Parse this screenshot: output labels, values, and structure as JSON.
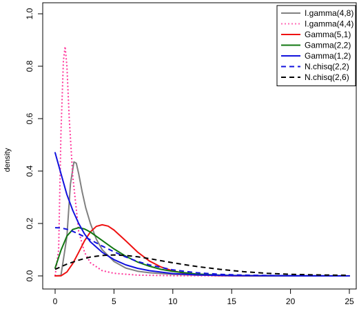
{
  "chart_data": {
    "type": "line",
    "title": "",
    "xlabel": "",
    "ylabel": "density",
    "xlim": [
      0,
      25
    ],
    "ylim": [
      0,
      1.0
    ],
    "x_ticks": [
      0,
      5,
      10,
      15,
      20,
      25
    ],
    "y_ticks": [
      0.0,
      0.2,
      0.4,
      0.6,
      0.8,
      1.0
    ],
    "x_tick_labels": [
      "0",
      "5",
      "10",
      "15",
      "20",
      "25"
    ],
    "y_tick_labels": [
      "0.0",
      "0.2",
      "0.4",
      "0.6",
      "0.8",
      "1.0"
    ],
    "grid": false,
    "legend_position": "top-right",
    "series": [
      {
        "name": "I.gamma(4,8)",
        "color": "#808080",
        "dash": "solid",
        "x": [
          0,
          0.5,
          1.0,
          1.3,
          1.6,
          1.8,
          2.0,
          2.3,
          2.6,
          3.0,
          3.5,
          4.0,
          5.0,
          6.0,
          7.0,
          8.0,
          10.0,
          12.0,
          15.0,
          20.0,
          25.0
        ],
        "y": [
          0,
          0.002,
          0.15,
          0.35,
          0.435,
          0.43,
          0.39,
          0.32,
          0.26,
          0.2,
          0.14,
          0.1,
          0.055,
          0.03,
          0.018,
          0.012,
          0.006,
          0.003,
          0.001,
          0.0004,
          0.0001
        ]
      },
      {
        "name": "I.gamma(4,4)",
        "color": "#ff3399",
        "dash": "dotted",
        "x": [
          0,
          0.3,
          0.5,
          0.7,
          0.85,
          1.0,
          1.2,
          1.5,
          2.0,
          2.5,
          3.0,
          4.0,
          5.0,
          7.0,
          10.0,
          15.0,
          25.0
        ],
        "y": [
          0,
          0.1,
          0.55,
          0.82,
          0.875,
          0.8,
          0.6,
          0.38,
          0.17,
          0.09,
          0.05,
          0.02,
          0.01,
          0.003,
          0.0008,
          0.0002,
          0.0
        ],
        "legend_color": "#ff69b4"
      },
      {
        "name": "Gamma(5,1)",
        "color": "#ee1111",
        "dash": "solid",
        "x": [
          0,
          0.5,
          1.0,
          1.5,
          2.0,
          2.5,
          3.0,
          3.5,
          4.0,
          4.5,
          5.0,
          6.0,
          7.0,
          8.0,
          9.0,
          10.0,
          11.0,
          12.0,
          14.0,
          16.0,
          20.0,
          25.0
        ],
        "y": [
          0,
          0.0002,
          0.015,
          0.047,
          0.09,
          0.134,
          0.168,
          0.189,
          0.195,
          0.19,
          0.175,
          0.134,
          0.091,
          0.057,
          0.034,
          0.019,
          0.01,
          0.005,
          0.001,
          0.0003,
          0.0,
          0.0
        ]
      },
      {
        "name": "Gamma(2,2)",
        "color": "#117711",
        "dash": "solid",
        "x": [
          0,
          0.5,
          1.0,
          1.5,
          2.0,
          2.5,
          3.0,
          4.0,
          5.0,
          6.0,
          7.0,
          8.0,
          9.0,
          10.0,
          12.0,
          14.0,
          16.0,
          20.0,
          25.0
        ],
        "y": [
          0.03,
          0.098,
          0.152,
          0.177,
          0.184,
          0.179,
          0.167,
          0.135,
          0.103,
          0.075,
          0.053,
          0.037,
          0.025,
          0.017,
          0.007,
          0.003,
          0.001,
          0.0002,
          0.0
        ]
      },
      {
        "name": "Gamma(1,2)",
        "color": "#1111dd",
        "dash": "solid",
        "x": [
          0,
          0.5,
          1.0,
          1.5,
          2.0,
          2.5,
          3.0,
          4.0,
          5.0,
          6.0,
          7.0,
          8.0,
          10.0,
          12.0,
          15.0,
          20.0,
          25.0
        ],
        "y": [
          0.47,
          0.39,
          0.31,
          0.25,
          0.2,
          0.16,
          0.13,
          0.09,
          0.062,
          0.042,
          0.029,
          0.02,
          0.009,
          0.004,
          0.001,
          0.0002,
          0.0
        ]
      },
      {
        "name": "N.chisq(2,2)",
        "color": "#1111dd",
        "dash": "dashed",
        "x": [
          0,
          0.5,
          1.0,
          1.5,
          2.0,
          3.0,
          4.0,
          5.0,
          6.0,
          7.0,
          8.0,
          10.0,
          12.0,
          14.0,
          16.0,
          20.0,
          25.0
        ],
        "y": [
          0.184,
          0.183,
          0.178,
          0.17,
          0.16,
          0.138,
          0.114,
          0.092,
          0.072,
          0.055,
          0.042,
          0.023,
          0.012,
          0.006,
          0.003,
          0.0006,
          0.0
        ]
      },
      {
        "name": "N.chisq(2,6)",
        "color": "#000000",
        "dash": "dashed",
        "x": [
          0,
          1.0,
          2.0,
          3.0,
          4.0,
          5.0,
          6.0,
          7.0,
          8.0,
          9.0,
          10.0,
          11.0,
          12.0,
          14.0,
          16.0,
          18.0,
          20.0,
          22.0,
          25.0
        ],
        "y": [
          0.025,
          0.045,
          0.06,
          0.072,
          0.078,
          0.08,
          0.078,
          0.073,
          0.066,
          0.058,
          0.05,
          0.043,
          0.036,
          0.025,
          0.016,
          0.01,
          0.006,
          0.004,
          0.002
        ]
      }
    ]
  }
}
